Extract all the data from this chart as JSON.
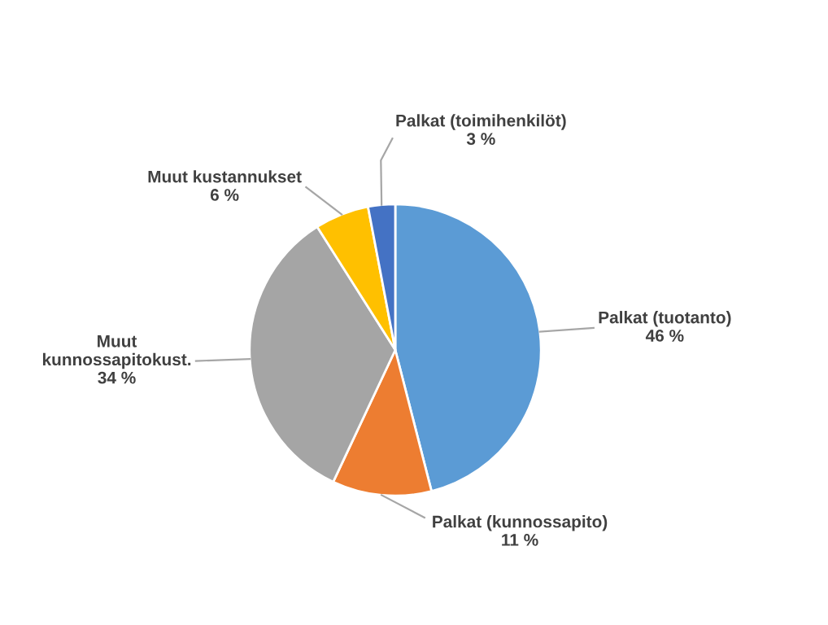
{
  "chart_data": {
    "type": "pie",
    "categories": [
      "Palkat (tuotanto)",
      "Palkat (kunnossapito)",
      "Muut kunnossapitokust.",
      "Muut kustannukset",
      "Palkat (toimihenkilöt)"
    ],
    "values": [
      46,
      11,
      34,
      6,
      3
    ],
    "value_labels": [
      "46 %",
      "11 %",
      "34 %",
      "6 %",
      "3 %"
    ],
    "colors": [
      "#5b9bd5",
      "#ed7d31",
      "#a5a5a5",
      "#ffc000",
      "#4472c4"
    ],
    "legend": false
  }
}
